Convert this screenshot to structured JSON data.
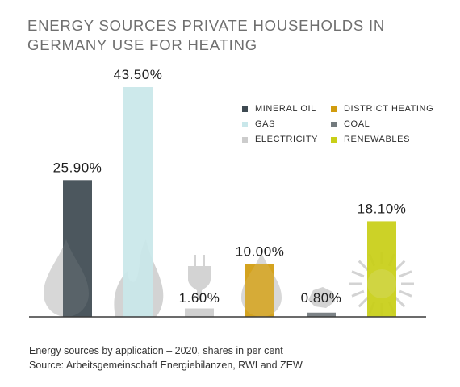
{
  "title": "ENERGY SOURCES PRIVATE HOUSEHOLDS IN GERMANY USE FOR HEATING",
  "note": "Energy sources by application – 2020, shares in per cent",
  "source": "Source: Arbeitsgemeinschaft Energiebilanzen, RWI and ZEW",
  "colors": {
    "mineral_oil": "#3e4a52",
    "gas": "#c9e7ea",
    "electricity": "#cccccc",
    "district_heating": "#d19c0e",
    "coal": "#737a7e",
    "renewables": "#c8cf17",
    "axis": "#3a3a3a",
    "icon_grey": "#d3d3d3"
  },
  "chart_data": {
    "type": "bar",
    "title": "ENERGY SOURCES PRIVATE HOUSEHOLDS IN GERMANY USE FOR HEATING",
    "xlabel": "",
    "ylabel": "",
    "ylim": [
      0,
      43.5
    ],
    "grid": false,
    "legend_position": "top-right",
    "categories": [
      "MINERAL OIL",
      "GAS",
      "ELECTRICITY",
      "DISTRICT HEATING",
      "COAL",
      "RENEWABLES"
    ],
    "values": [
      25.9,
      43.5,
      1.6,
      10.0,
      0.8,
      18.1
    ],
    "labels": [
      "25.90%",
      "43.50%",
      "1.60%",
      "10.00%",
      "0.80%",
      "18.10%"
    ],
    "icons": [
      "oil-drop-icon",
      "gas-flame-icon",
      "plug-icon",
      "heat-drop-icon",
      "coal-icon",
      "sun-icon"
    ]
  },
  "legend": [
    {
      "label": "MINERAL OIL",
      "color": "#3e4a52"
    },
    {
      "label": "DISTRICT HEATING",
      "color": "#d19c0e"
    },
    {
      "label": "GAS",
      "color": "#c9e7ea"
    },
    {
      "label": "COAL",
      "color": "#737a7e"
    },
    {
      "label": "ELECTRICITY",
      "color": "#cccccc"
    },
    {
      "label": "RENEWABLES",
      "color": "#c8cf17"
    }
  ]
}
